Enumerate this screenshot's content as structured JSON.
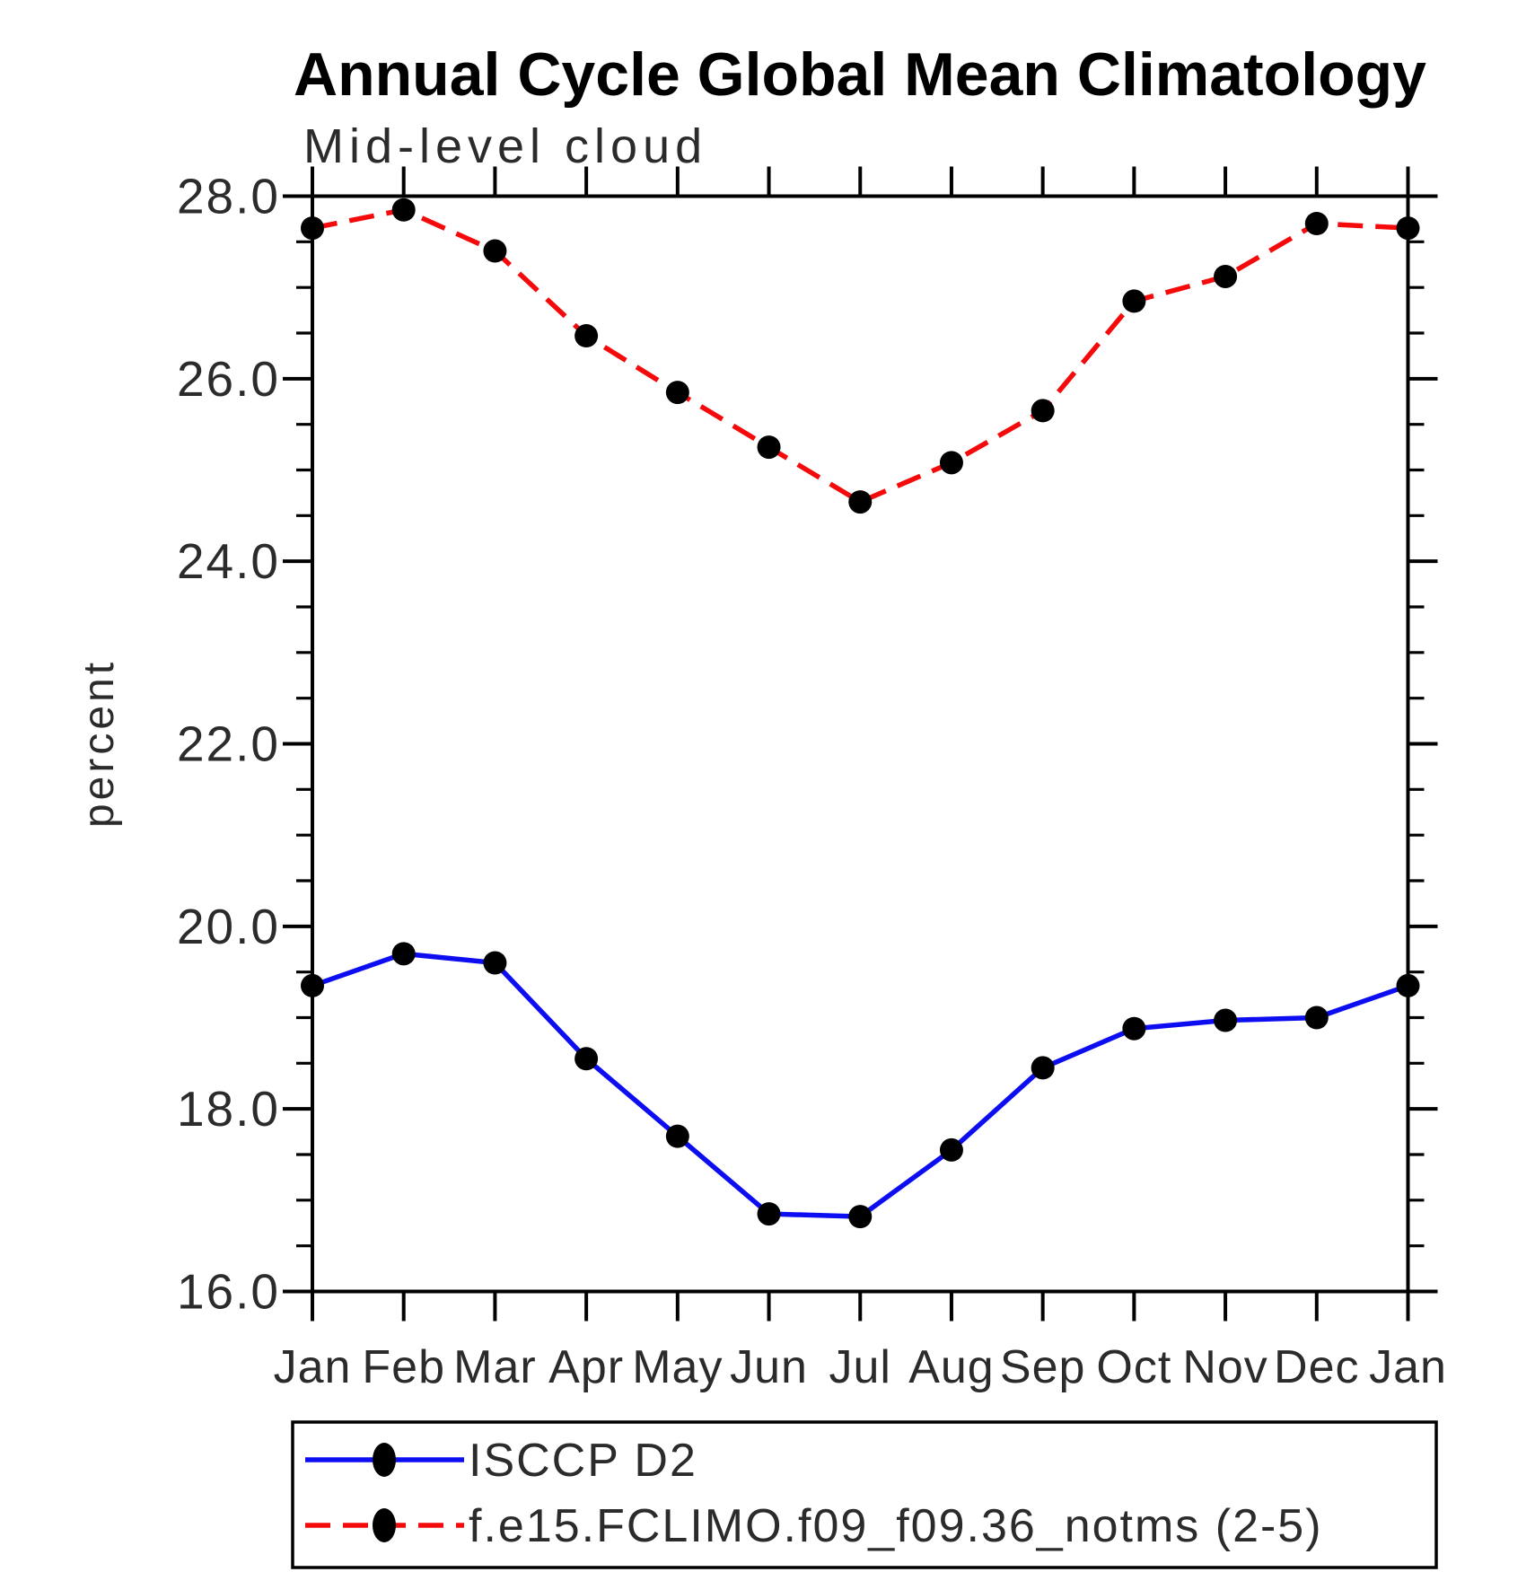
{
  "chart_data": {
    "type": "line",
    "title": "Annual Cycle Global Mean Climatology",
    "subtitle": "Mid-level cloud",
    "xlabel": "",
    "ylabel": "percent",
    "categories": [
      "Jan",
      "Feb",
      "Mar",
      "Apr",
      "May",
      "Jun",
      "Jul",
      "Aug",
      "Sep",
      "Oct",
      "Nov",
      "Dec",
      "Jan"
    ],
    "ylim": [
      16.0,
      28.0
    ],
    "ytick_major": [
      16.0,
      18.0,
      20.0,
      22.0,
      24.0,
      26.0,
      28.0
    ],
    "ytick_labels": [
      "16.0",
      "18.0",
      "20.0",
      "22.0",
      "24.0",
      "26.0",
      "28.0"
    ],
    "ytick_minor_step": 0.5,
    "grid": "off",
    "legend_position": "bottom",
    "marker": {
      "shape": "filled-circle",
      "color": "#000000"
    },
    "series": [
      {
        "name": "ISCCP D2",
        "color": "#0d0df2",
        "line_style": "solid",
        "values": [
          19.35,
          19.7,
          19.6,
          18.55,
          17.7,
          16.85,
          16.82,
          17.55,
          18.45,
          18.88,
          18.97,
          19.0,
          19.35
        ]
      },
      {
        "name": "f.e15.FCLIMO.f09_f09.36_notms (2-5)",
        "color": "#f40a0a",
        "line_style": "dashed",
        "values": [
          27.65,
          27.85,
          27.4,
          26.47,
          25.85,
          25.25,
          24.65,
          25.08,
          25.65,
          26.85,
          27.12,
          27.7,
          27.65
        ]
      }
    ]
  }
}
